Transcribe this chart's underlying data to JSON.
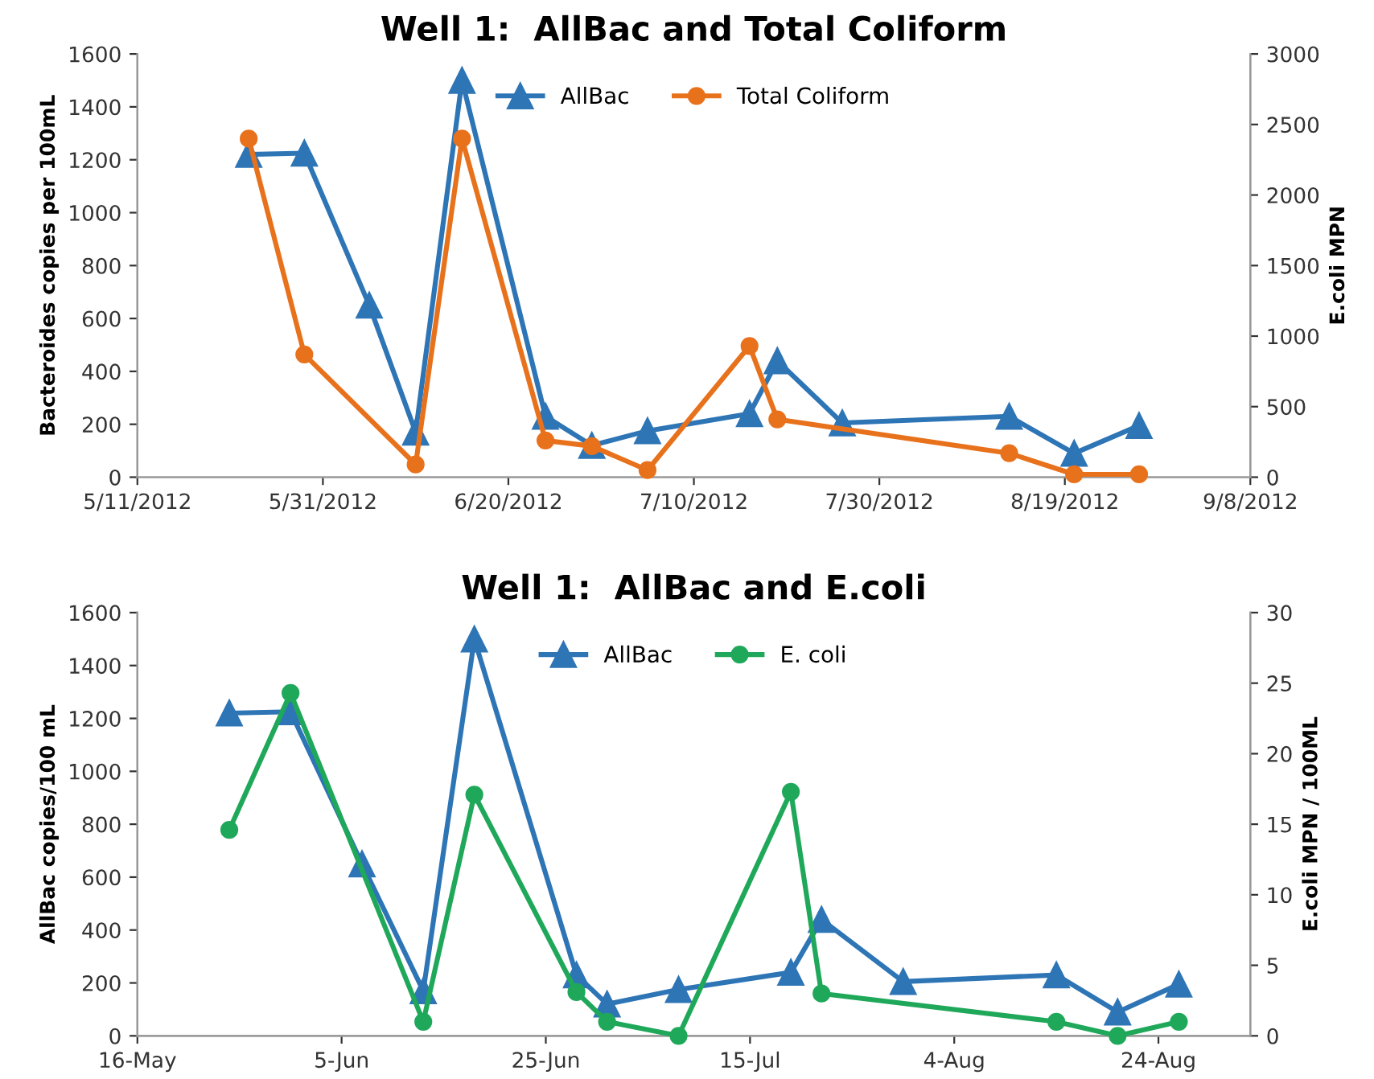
{
  "chart_data": [
    {
      "type": "line",
      "title": "Well 1:  AllBac and Total Coliform",
      "ylabel": "Bacteroides copies per 100mL",
      "y2label": "E.coli MPN",
      "legend": "top",
      "grid": false,
      "line_style": "solid",
      "xlim": [
        "2012-05-11",
        "2012-09-08"
      ],
      "xticks": [
        {
          "value": "2012-05-11",
          "label": "5/11/2012"
        },
        {
          "value": "2012-05-31",
          "label": "5/31/2012"
        },
        {
          "value": "2012-06-20",
          "label": "6/20/2012"
        },
        {
          "value": "2012-07-10",
          "label": "7/10/2012"
        },
        {
          "value": "2012-07-30",
          "label": "7/30/2012"
        },
        {
          "value": "2012-08-19",
          "label": "8/19/2012"
        },
        {
          "value": "2012-09-08",
          "label": "9/8/2012"
        }
      ],
      "ylim": [
        0,
        1600
      ],
      "yticks": [
        0,
        200,
        400,
        600,
        800,
        1000,
        1200,
        1400,
        1600
      ],
      "y2lim": [
        0,
        3000
      ],
      "y2ticks": [
        0,
        500,
        1000,
        1500,
        2000,
        2500,
        3000
      ],
      "series": [
        {
          "name": "AllBac",
          "color": "#2e75b6",
          "marker": "triangle",
          "x": [
            "2012-05-23",
            "2012-05-29",
            "2012-06-05",
            "2012-06-10",
            "2012-06-15",
            "2012-06-24",
            "2012-06-29",
            "2012-07-05",
            "2012-07-16",
            "2012-07-19",
            "2012-07-26",
            "2012-08-13",
            "2012-08-20",
            "2012-08-27"
          ],
          "values": [
            1220,
            1225,
            650,
            170,
            1500,
            230,
            120,
            175,
            240,
            440,
            205,
            230,
            90,
            195
          ]
        },
        {
          "name": "Total Coliform",
          "color": "#e8711c",
          "marker": "circle",
          "axis": "y2",
          "x": [
            "2012-05-23",
            "2012-05-29",
            "2012-06-10",
            "2012-06-15",
            "2012-06-24",
            "2012-06-29",
            "2012-07-05",
            "2012-07-16",
            "2012-07-19",
            "2012-08-13",
            "2012-08-20",
            "2012-08-27"
          ],
          "values": [
            2400,
            870,
            90,
            2400,
            260,
            220,
            50,
            930,
            410,
            170,
            20,
            20
          ]
        }
      ]
    },
    {
      "type": "line",
      "title": "Well 1:  AllBac and E.coli",
      "ylabel": "AllBac copies/100 mL",
      "y2label": "E.coli MPN / 100ML",
      "legend": "top",
      "grid": false,
      "line_style": "solid",
      "xlim": [
        "2012-05-16",
        "2012-09-02"
      ],
      "xticks": [
        {
          "value": "2012-05-16",
          "label": "16-May"
        },
        {
          "value": "2012-06-05",
          "label": "5-Jun"
        },
        {
          "value": "2012-06-25",
          "label": "25-Jun"
        },
        {
          "value": "2012-07-15",
          "label": "15-Jul"
        },
        {
          "value": "2012-08-04",
          "label": "4-Aug"
        },
        {
          "value": "2012-08-24",
          "label": "24-Aug"
        }
      ],
      "ylim": [
        0,
        1600
      ],
      "yticks": [
        0,
        200,
        400,
        600,
        800,
        1000,
        1200,
        1400,
        1600
      ],
      "y2lim": [
        0,
        30
      ],
      "y2ticks": [
        0,
        5,
        10,
        15,
        20,
        25,
        30
      ],
      "series": [
        {
          "name": "AllBac",
          "color": "#2e75b6",
          "marker": "triangle",
          "x": [
            "2012-05-25",
            "2012-05-31",
            "2012-06-07",
            "2012-06-13",
            "2012-06-18",
            "2012-06-28",
            "2012-07-01",
            "2012-07-08",
            "2012-07-19",
            "2012-07-22",
            "2012-07-30",
            "2012-08-14",
            "2012-08-20",
            "2012-08-26"
          ],
          "values": [
            1220,
            1225,
            650,
            170,
            1500,
            230,
            120,
            175,
            240,
            440,
            205,
            230,
            90,
            195
          ]
        },
        {
          "name": "E. coli",
          "color": "#1fa85a",
          "marker": "circle",
          "axis": "y2",
          "x": [
            "2012-05-25",
            "2012-05-31",
            "2012-06-13",
            "2012-06-18",
            "2012-06-28",
            "2012-07-01",
            "2012-07-08",
            "2012-07-19",
            "2012-07-22",
            "2012-08-14",
            "2012-08-20",
            "2012-08-26"
          ],
          "values": [
            14.6,
            24.3,
            1,
            17.1,
            3.1,
            1,
            0,
            17.3,
            3,
            1,
            0,
            1
          ]
        }
      ]
    }
  ]
}
